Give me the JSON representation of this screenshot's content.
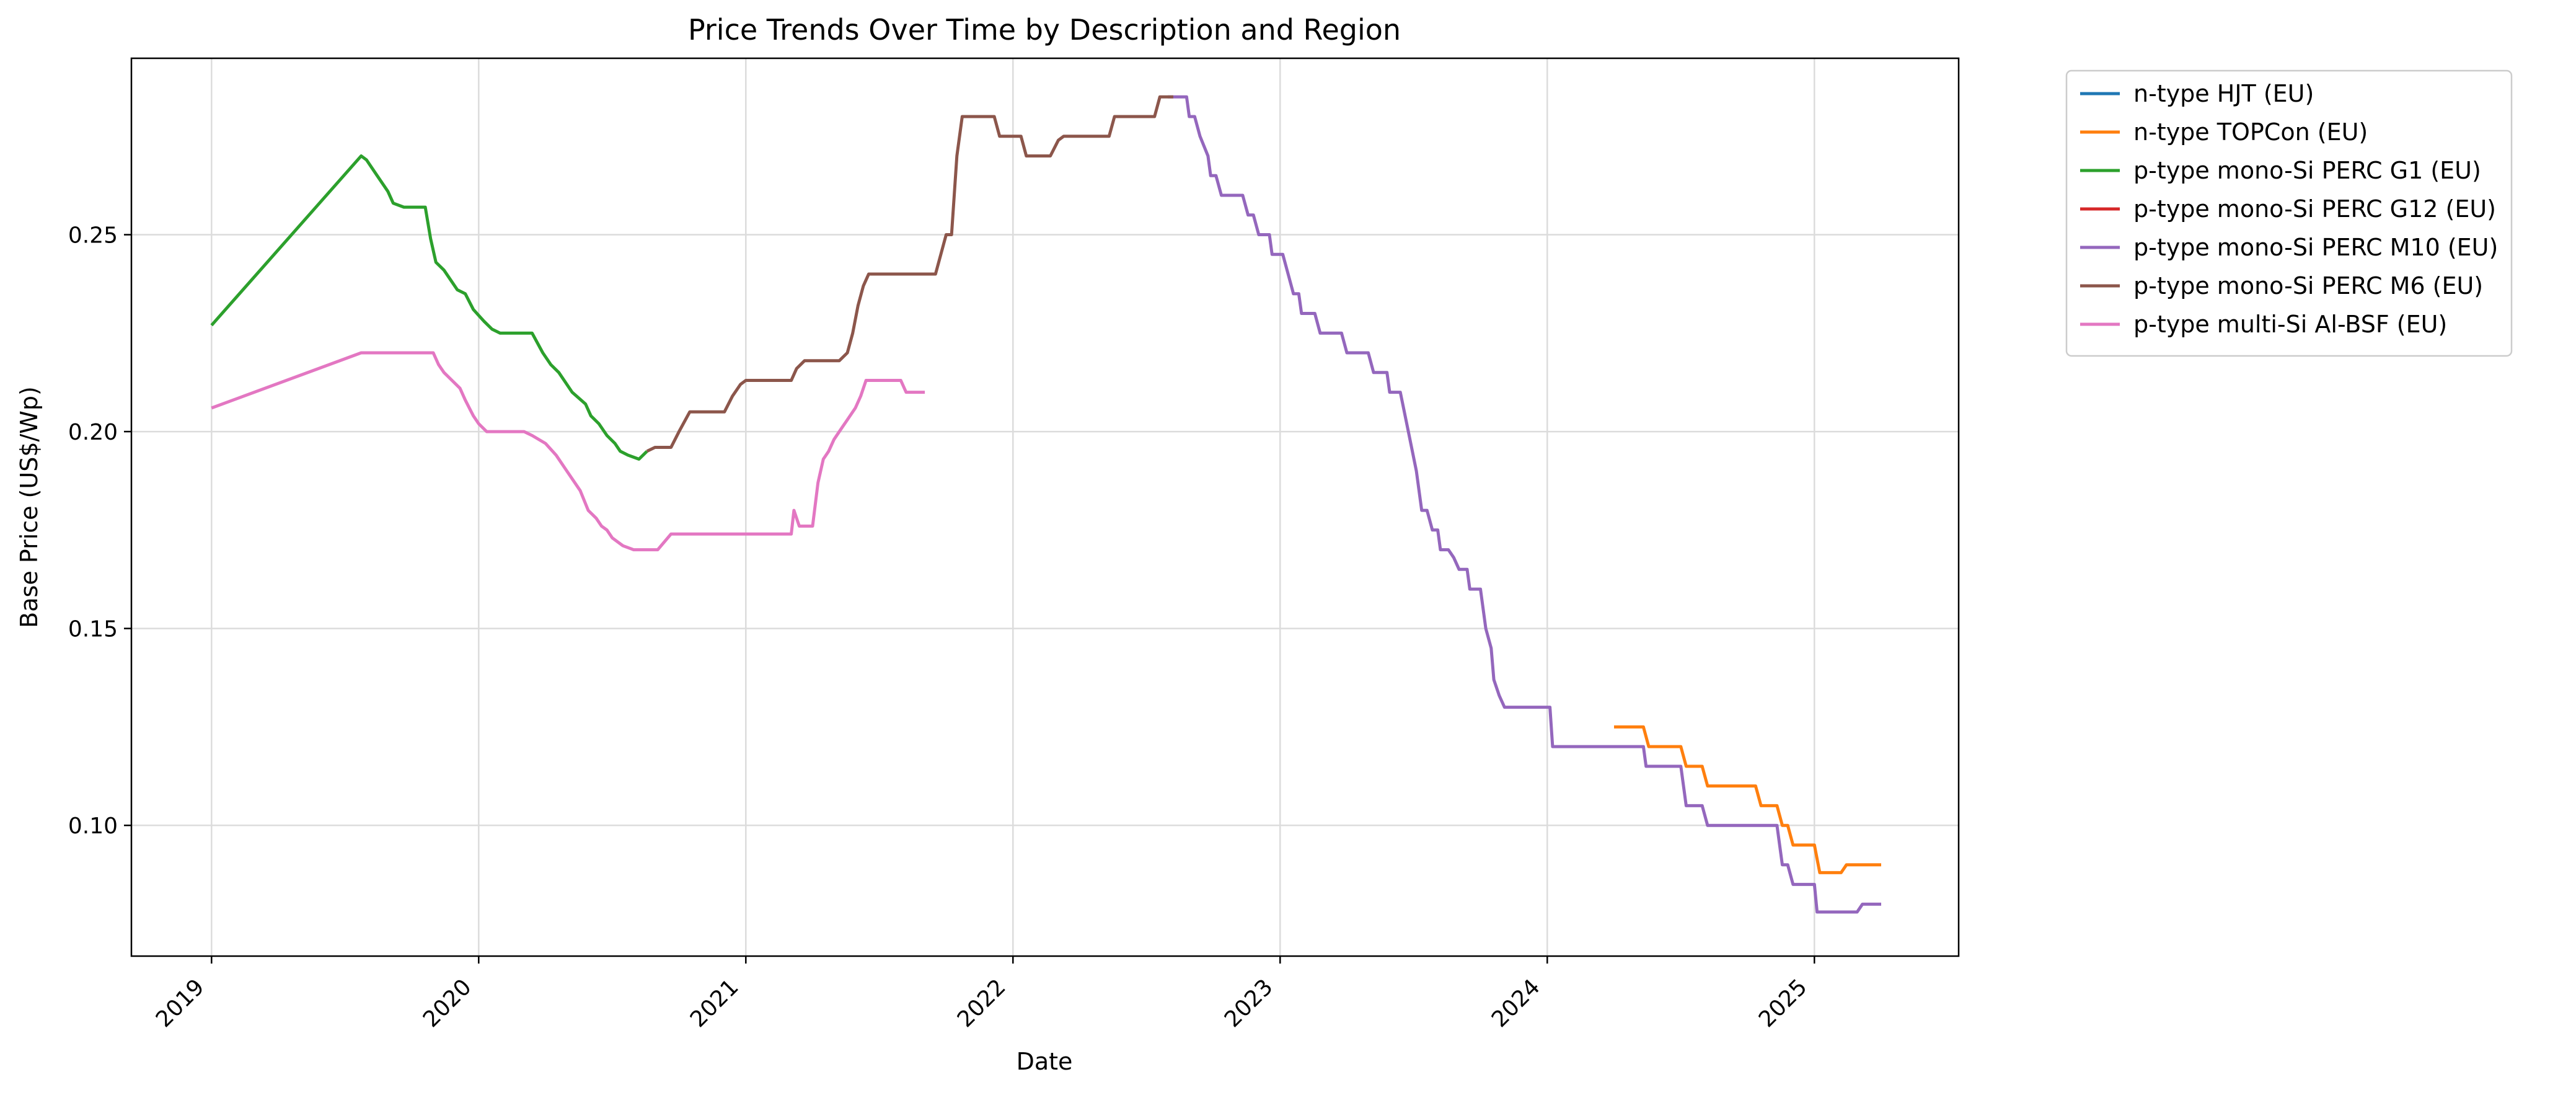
{
  "chart_data": {
    "type": "line",
    "title": "Price Trends Over Time by Description and Region",
    "xlabel": "Date",
    "ylabel": "Base Price (US$/Wp)",
    "xlim": [
      2018.7,
      2025.54
    ],
    "ylim": [
      0.0668,
      0.2948
    ],
    "x_ticks": [
      2019,
      2020,
      2021,
      2022,
      2023,
      2024,
      2025
    ],
    "x_tick_labels": [
      "2019",
      "2020",
      "2021",
      "2022",
      "2023",
      "2024",
      "2025"
    ],
    "y_ticks": [
      0.1,
      0.15,
      0.2,
      0.25
    ],
    "y_tick_labels": [
      "0.10",
      "0.15",
      "0.20",
      "0.25"
    ],
    "grid": true,
    "legend_position": "outside-top-right",
    "series": [
      {
        "name": "n-type HJT (EU)",
        "color": "#1f77b4",
        "points": []
      },
      {
        "name": "n-type TOPCon (EU)",
        "color": "#ff7f0e",
        "points": [
          [
            2024.25,
            0.125
          ],
          [
            2024.36,
            0.125
          ],
          [
            2024.38,
            0.12
          ],
          [
            2024.5,
            0.12
          ],
          [
            2024.52,
            0.115
          ],
          [
            2024.58,
            0.115
          ],
          [
            2024.6,
            0.11
          ],
          [
            2024.78,
            0.11
          ],
          [
            2024.8,
            0.105
          ],
          [
            2024.86,
            0.105
          ],
          [
            2024.88,
            0.1
          ],
          [
            2024.9,
            0.1
          ],
          [
            2024.92,
            0.095
          ],
          [
            2025.0,
            0.095
          ],
          [
            2025.02,
            0.088
          ],
          [
            2025.1,
            0.088
          ],
          [
            2025.12,
            0.09
          ],
          [
            2025.25,
            0.09
          ]
        ]
      },
      {
        "name": "p-type mono-Si PERC G1 (EU)",
        "color": "#2ca02c",
        "points": [
          [
            2019.0,
            0.227
          ],
          [
            2019.56,
            0.27
          ],
          [
            2019.58,
            0.269
          ],
          [
            2019.62,
            0.265
          ],
          [
            2019.66,
            0.261
          ],
          [
            2019.68,
            0.258
          ],
          [
            2019.72,
            0.257
          ],
          [
            2019.76,
            0.257
          ],
          [
            2019.8,
            0.257
          ],
          [
            2019.82,
            0.249
          ],
          [
            2019.84,
            0.243
          ],
          [
            2019.87,
            0.241
          ],
          [
            2019.9,
            0.238
          ],
          [
            2019.92,
            0.236
          ],
          [
            2019.95,
            0.235
          ],
          [
            2019.98,
            0.231
          ],
          [
            2020.02,
            0.228
          ],
          [
            2020.05,
            0.226
          ],
          [
            2020.08,
            0.225
          ],
          [
            2020.18,
            0.225
          ],
          [
            2020.2,
            0.225
          ],
          [
            2020.24,
            0.22
          ],
          [
            2020.27,
            0.217
          ],
          [
            2020.3,
            0.215
          ],
          [
            2020.33,
            0.212
          ],
          [
            2020.35,
            0.21
          ],
          [
            2020.4,
            0.207
          ],
          [
            2020.42,
            0.204
          ],
          [
            2020.45,
            0.202
          ],
          [
            2020.48,
            0.199
          ],
          [
            2020.51,
            0.197
          ],
          [
            2020.53,
            0.195
          ],
          [
            2020.56,
            0.194
          ],
          [
            2020.6,
            0.193
          ],
          [
            2020.63,
            0.195
          ]
        ]
      },
      {
        "name": "p-type mono-Si PERC G12 (EU)",
        "color": "#d62728",
        "points": []
      },
      {
        "name": "p-type mono-Si PERC M10 (EU)",
        "color": "#9467bd",
        "points": [
          [
            2022.58,
            0.285
          ],
          [
            2022.65,
            0.285
          ],
          [
            2022.66,
            0.28
          ],
          [
            2022.68,
            0.28
          ],
          [
            2022.7,
            0.275
          ],
          [
            2022.73,
            0.27
          ],
          [
            2022.74,
            0.265
          ],
          [
            2022.76,
            0.265
          ],
          [
            2022.78,
            0.26
          ],
          [
            2022.86,
            0.26
          ],
          [
            2022.88,
            0.255
          ],
          [
            2022.9,
            0.255
          ],
          [
            2022.92,
            0.25
          ],
          [
            2022.96,
            0.25
          ],
          [
            2022.97,
            0.245
          ],
          [
            2023.01,
            0.245
          ],
          [
            2023.03,
            0.24
          ],
          [
            2023.05,
            0.235
          ],
          [
            2023.07,
            0.235
          ],
          [
            2023.08,
            0.23
          ],
          [
            2023.13,
            0.23
          ],
          [
            2023.15,
            0.225
          ],
          [
            2023.23,
            0.225
          ],
          [
            2023.25,
            0.22
          ],
          [
            2023.33,
            0.22
          ],
          [
            2023.35,
            0.215
          ],
          [
            2023.4,
            0.215
          ],
          [
            2023.41,
            0.21
          ],
          [
            2023.45,
            0.21
          ],
          [
            2023.48,
            0.2
          ],
          [
            2023.51,
            0.19
          ],
          [
            2023.53,
            0.18
          ],
          [
            2023.55,
            0.18
          ],
          [
            2023.57,
            0.175
          ],
          [
            2023.59,
            0.175
          ],
          [
            2023.6,
            0.17
          ],
          [
            2023.63,
            0.17
          ],
          [
            2023.65,
            0.168
          ],
          [
            2023.67,
            0.165
          ],
          [
            2023.7,
            0.165
          ],
          [
            2023.71,
            0.16
          ],
          [
            2023.75,
            0.16
          ],
          [
            2023.77,
            0.15
          ],
          [
            2023.79,
            0.145
          ],
          [
            2023.8,
            0.137
          ],
          [
            2023.82,
            0.133
          ],
          [
            2023.84,
            0.13
          ],
          [
            2024.01,
            0.13
          ],
          [
            2024.02,
            0.12
          ],
          [
            2024.33,
            0.12
          ],
          [
            2024.36,
            0.12
          ],
          [
            2024.37,
            0.115
          ],
          [
            2024.5,
            0.115
          ],
          [
            2024.52,
            0.105
          ],
          [
            2024.58,
            0.105
          ],
          [
            2024.6,
            0.1
          ],
          [
            2024.86,
            0.1
          ],
          [
            2024.88,
            0.09
          ],
          [
            2024.9,
            0.09
          ],
          [
            2024.92,
            0.085
          ],
          [
            2025.0,
            0.085
          ],
          [
            2025.01,
            0.078
          ],
          [
            2025.16,
            0.078
          ],
          [
            2025.18,
            0.08
          ],
          [
            2025.25,
            0.08
          ]
        ]
      },
      {
        "name": "p-type mono-Si PERC M6 (EU)",
        "color": "#8c564b",
        "points": [
          [
            2020.63,
            0.195
          ],
          [
            2020.66,
            0.196
          ],
          [
            2020.72,
            0.196
          ],
          [
            2020.75,
            0.2
          ],
          [
            2020.79,
            0.205
          ],
          [
            2020.92,
            0.205
          ],
          [
            2020.95,
            0.209
          ],
          [
            2020.98,
            0.212
          ],
          [
            2021.0,
            0.213
          ],
          [
            2021.15,
            0.213
          ],
          [
            2021.17,
            0.213
          ],
          [
            2021.19,
            0.216
          ],
          [
            2021.22,
            0.218
          ],
          [
            2021.35,
            0.218
          ],
          [
            2021.38,
            0.22
          ],
          [
            2021.4,
            0.225
          ],
          [
            2021.42,
            0.232
          ],
          [
            2021.44,
            0.237
          ],
          [
            2021.46,
            0.24
          ],
          [
            2021.71,
            0.24
          ],
          [
            2021.75,
            0.25
          ],
          [
            2021.77,
            0.25
          ],
          [
            2021.79,
            0.27
          ],
          [
            2021.81,
            0.28
          ],
          [
            2021.93,
            0.28
          ],
          [
            2021.95,
            0.275
          ],
          [
            2022.03,
            0.275
          ],
          [
            2022.05,
            0.27
          ],
          [
            2022.14,
            0.27
          ],
          [
            2022.17,
            0.274
          ],
          [
            2022.19,
            0.275
          ],
          [
            2022.36,
            0.275
          ],
          [
            2022.38,
            0.28
          ],
          [
            2022.53,
            0.28
          ],
          [
            2022.55,
            0.285
          ],
          [
            2022.6,
            0.285
          ]
        ]
      },
      {
        "name": "p-type multi-Si Al-BSF (EU)",
        "color": "#e377c2",
        "points": [
          [
            2019.0,
            0.206
          ],
          [
            2019.56,
            0.22
          ],
          [
            2019.83,
            0.22
          ],
          [
            2019.85,
            0.217
          ],
          [
            2019.87,
            0.215
          ],
          [
            2019.9,
            0.213
          ],
          [
            2019.93,
            0.211
          ],
          [
            2019.95,
            0.208
          ],
          [
            2019.98,
            0.204
          ],
          [
            2020.0,
            0.202
          ],
          [
            2020.03,
            0.2
          ],
          [
            2020.17,
            0.2
          ],
          [
            2020.2,
            0.199
          ],
          [
            2020.25,
            0.197
          ],
          [
            2020.29,
            0.194
          ],
          [
            2020.33,
            0.19
          ],
          [
            2020.38,
            0.185
          ],
          [
            2020.41,
            0.18
          ],
          [
            2020.44,
            0.178
          ],
          [
            2020.46,
            0.176
          ],
          [
            2020.48,
            0.175
          ],
          [
            2020.5,
            0.173
          ],
          [
            2020.52,
            0.172
          ],
          [
            2020.54,
            0.171
          ],
          [
            2020.58,
            0.17
          ],
          [
            2020.67,
            0.17
          ],
          [
            2020.72,
            0.174
          ],
          [
            2021.17,
            0.174
          ],
          [
            2021.18,
            0.18
          ],
          [
            2021.2,
            0.176
          ],
          [
            2021.25,
            0.176
          ],
          [
            2021.27,
            0.187
          ],
          [
            2021.29,
            0.193
          ],
          [
            2021.31,
            0.195
          ],
          [
            2021.33,
            0.198
          ],
          [
            2021.36,
            0.201
          ],
          [
            2021.38,
            0.203
          ],
          [
            2021.41,
            0.206
          ],
          [
            2021.43,
            0.209
          ],
          [
            2021.45,
            0.213
          ],
          [
            2021.58,
            0.213
          ],
          [
            2021.6,
            0.21
          ],
          [
            2021.67,
            0.21
          ]
        ]
      }
    ]
  }
}
